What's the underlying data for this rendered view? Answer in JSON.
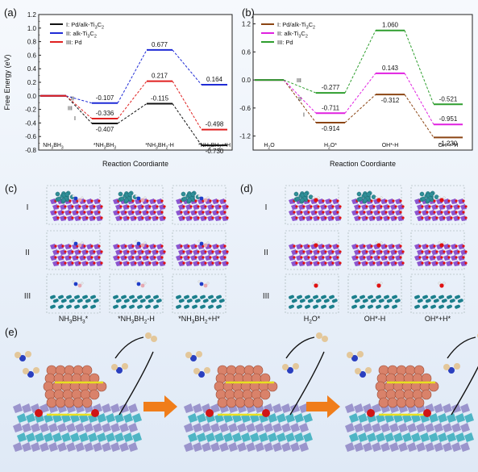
{
  "panels": {
    "a": "(a)",
    "b": "(b)",
    "c": "(c)",
    "d": "(d)",
    "e": "(e)"
  },
  "chart_data": [
    {
      "type": "line",
      "ylabel": "Free Energy (eV)",
      "xlabel": "Reaction Coordiante",
      "ylim": [
        -0.8,
        1.2
      ],
      "yticks": [
        "1.2",
        "1.0",
        "0.8",
        "0.6",
        "0.4",
        "0.2",
        "0.0",
        "-0.2",
        "-0.4",
        "-0.6",
        "-0.8"
      ],
      "categories": [
        "NH3BH3",
        "*NH3BH3",
        "*NH3BH2-H",
        "*NH3BH2+*H"
      ],
      "category_labels": [
        {
          "main": "NH",
          "s1": "3",
          "mid": "BH",
          "s2": "3",
          "prefix": ""
        },
        {
          "main": "NH",
          "s1": "3",
          "mid": "BH",
          "s2": "3",
          "prefix": "*"
        },
        {
          "main": "NH",
          "s1": "3",
          "mid": "BH",
          "s2": "2",
          "suffix": "-H",
          "prefix": "*"
        },
        {
          "main": "NH",
          "s1": "3",
          "mid": "BH",
          "s2": "2",
          "suffix": "+*H",
          "prefix": "*"
        }
      ],
      "legend": [
        {
          "label": "I: Pd/alk-Ti3C2",
          "color": "#111111"
        },
        {
          "label": "II: alk-Ti3C2",
          "color": "#1f2bd6"
        },
        {
          "label": "III: Pd",
          "color": "#e02020"
        }
      ],
      "series": [
        {
          "name": "I: Pd/alk-Ti3C2",
          "color": "#111111",
          "values": [
            0,
            -0.407,
            -0.115,
            -0.73
          ],
          "labels": [
            "",
            "-0.407",
            "-0.115",
            "-0.730"
          ]
        },
        {
          "name": "II: alk-Ti3C2",
          "color": "#1f2bd6",
          "values": [
            0,
            -0.107,
            0.677,
            0.164
          ],
          "labels": [
            "",
            "-0.107",
            "0.677",
            "0.164"
          ]
        },
        {
          "name": "III: Pd",
          "color": "#e02020",
          "values": [
            0,
            -0.336,
            0.217,
            -0.498
          ],
          "labels": [
            "",
            "-0.336",
            "0.217",
            "-0.498"
          ]
        }
      ],
      "branch_labels": [
        "II",
        "III",
        "I"
      ]
    },
    {
      "type": "line",
      "xlabel": "Reaction Coordiante",
      "ylim": [
        -1.5,
        1.4
      ],
      "yticks": [
        "1.2",
        "0.6",
        "0.0",
        "-0.6",
        "-1.2"
      ],
      "categories": [
        "H2O",
        "H2O*",
        "OH*-H",
        "OH*+*H"
      ],
      "legend": [
        {
          "label": "I: Pd/alk-Ti3C2",
          "color": "#8b4513"
        },
        {
          "label": "II: alk-Ti3C2",
          "color": "#e020e0"
        },
        {
          "label": "III: Pd",
          "color": "#2e9e2e"
        }
      ],
      "series": [
        {
          "name": "I: Pd/alk-Ti3C2",
          "color": "#8b4513",
          "values": [
            0,
            -0.914,
            -0.312,
            -1.23
          ],
          "labels": [
            "",
            "-0.914",
            "-0.312",
            "-1.230"
          ]
        },
        {
          "name": "II: alk-Ti3C2",
          "color": "#e020e0",
          "values": [
            0,
            -0.711,
            0.143,
            -0.951
          ],
          "labels": [
            "",
            "-0.711",
            "0.143",
            "-0.951"
          ]
        },
        {
          "name": "III: Pd",
          "color": "#2e9e2e",
          "values": [
            0,
            -0.277,
            1.06,
            -0.521
          ],
          "labels": [
            "",
            "-0.277",
            "1.060",
            "-0.521"
          ]
        }
      ],
      "branch_labels": [
        "III",
        "II",
        "I"
      ]
    }
  ],
  "structures_c": {
    "rows": [
      "I",
      "II",
      "III"
    ],
    "captions": [
      "NH3BH3*",
      "*NH3BH2-H",
      "*NH3BH2+H*"
    ]
  },
  "structures_d": {
    "rows": [
      "I",
      "II",
      "III"
    ],
    "captions": [
      "H2O*",
      "OH*-H",
      "OH*+H*"
    ]
  }
}
